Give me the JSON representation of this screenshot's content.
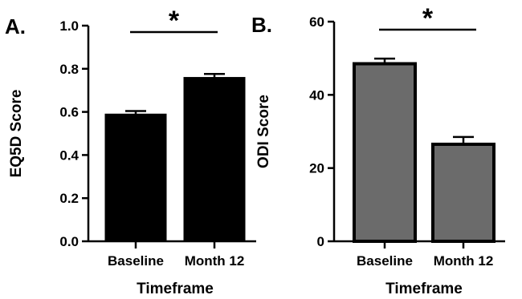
{
  "chart_data": [
    {
      "type": "bar",
      "panel_label": "A.",
      "categories": [
        "Baseline",
        "Month 12"
      ],
      "values": [
        0.59,
        0.76
      ],
      "errors": [
        0.014,
        0.016
      ],
      "bar_fill": "#000000",
      "bar_edge": "#000000",
      "xlabel": "Timeframe",
      "ylabel": "EQ5D Score",
      "ylim": [
        0,
        1.0
      ],
      "yticks": [
        "0.0",
        "0.2",
        "0.4",
        "0.6",
        "0.8",
        "1.0"
      ],
      "significance": "*",
      "grid": false,
      "legend": "none"
    },
    {
      "type": "bar",
      "panel_label": "B.",
      "categories": [
        "Baseline",
        "Month 12"
      ],
      "values": [
        48.5,
        26.5
      ],
      "errors": [
        1.4,
        2.0
      ],
      "bar_fill": "#6b6b6b",
      "bar_edge": "#000000",
      "xlabel": "Timeframe",
      "ylabel": "ODI Score",
      "ylim": [
        0,
        60
      ],
      "yticks": [
        "0",
        "20",
        "40",
        "60"
      ],
      "significance": "*",
      "grid": false,
      "legend": "none"
    }
  ]
}
